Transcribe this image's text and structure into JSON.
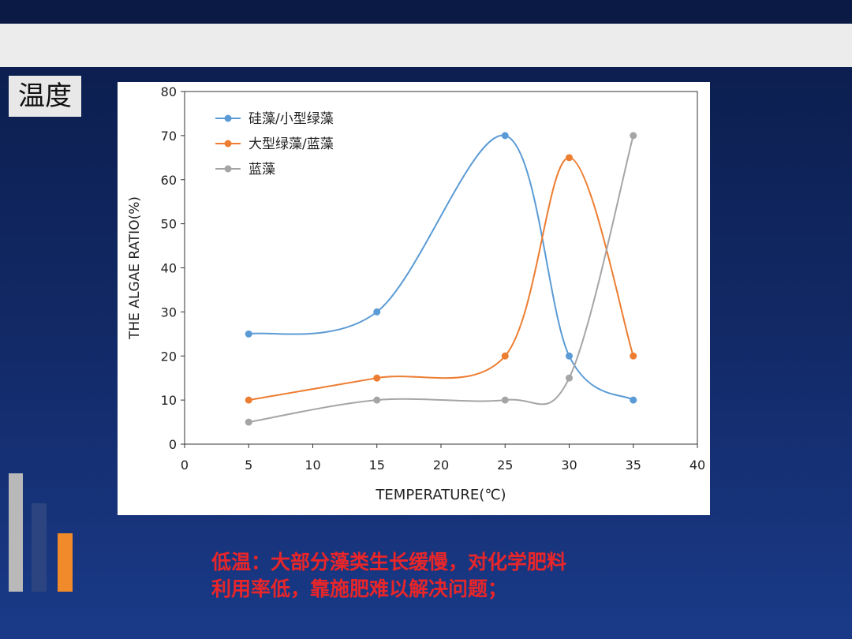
{
  "slide": {
    "heading": "温度",
    "caption_lines": [
      "低温：大部分藻类生长缓慢，对化学肥料",
      "利用率低，靠施肥难以解决问题；"
    ],
    "colors": {
      "background": "#122a68",
      "caption": "#e8262a",
      "deco_bars": [
        "#b9b9b9",
        "#2c4580",
        "#f08a2a"
      ]
    }
  },
  "chart_data": {
    "type": "line",
    "smooth": true,
    "title": "",
    "xlabel": "TEMPERATURE(℃)",
    "ylabel": "THE ALGAE RATIO(%)",
    "xlim": [
      0,
      40
    ],
    "ylim": [
      0,
      80
    ],
    "xticks": [
      0,
      5,
      10,
      15,
      20,
      25,
      30,
      35,
      40
    ],
    "yticks": [
      0,
      10,
      20,
      30,
      40,
      50,
      60,
      70,
      80
    ],
    "grid": false,
    "legend_position": "top-left",
    "x": [
      5,
      15,
      25,
      30,
      35
    ],
    "series": [
      {
        "name": "硅藻/小型绿藻",
        "color": "#5b9bd5",
        "values": [
          25,
          30,
          70,
          20,
          10
        ]
      },
      {
        "name": "大型绿藻/蓝藻",
        "color": "#ed7d31",
        "values": [
          10,
          15,
          20,
          65,
          20
        ]
      },
      {
        "name": "蓝藻",
        "color": "#a5a5a5",
        "values": [
          5,
          10,
          10,
          15,
          70
        ]
      }
    ]
  }
}
